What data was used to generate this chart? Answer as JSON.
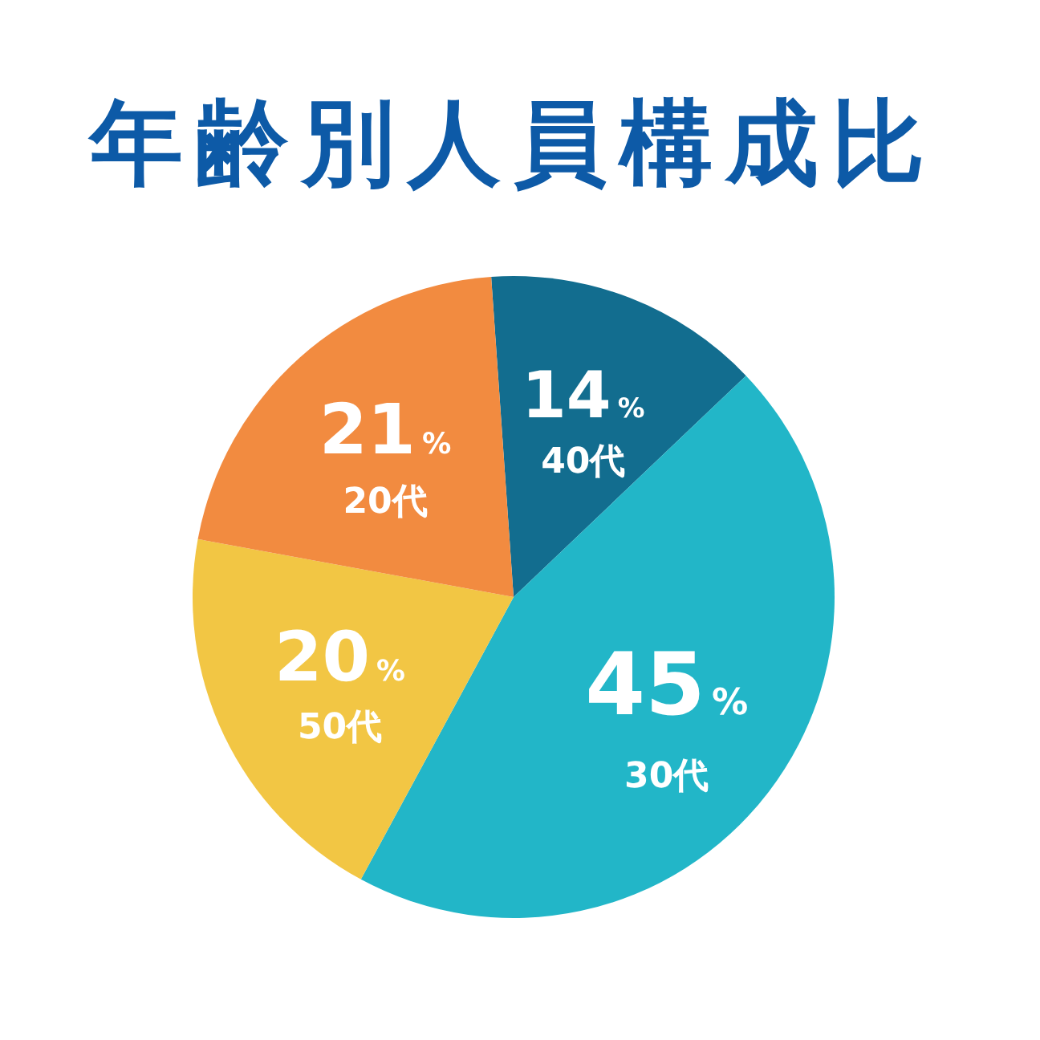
{
  "chart_data": {
    "type": "pie",
    "title": "年齢別人員構成比",
    "categories": [
      "40代",
      "30代",
      "50代",
      "20代"
    ],
    "values": [
      14,
      45,
      20,
      21
    ],
    "colors": [
      "#126d8f",
      "#22b6c8",
      "#f2c644",
      "#f28b40"
    ],
    "value_labels": [
      "14%",
      "45%",
      "20%",
      "21%"
    ]
  }
}
